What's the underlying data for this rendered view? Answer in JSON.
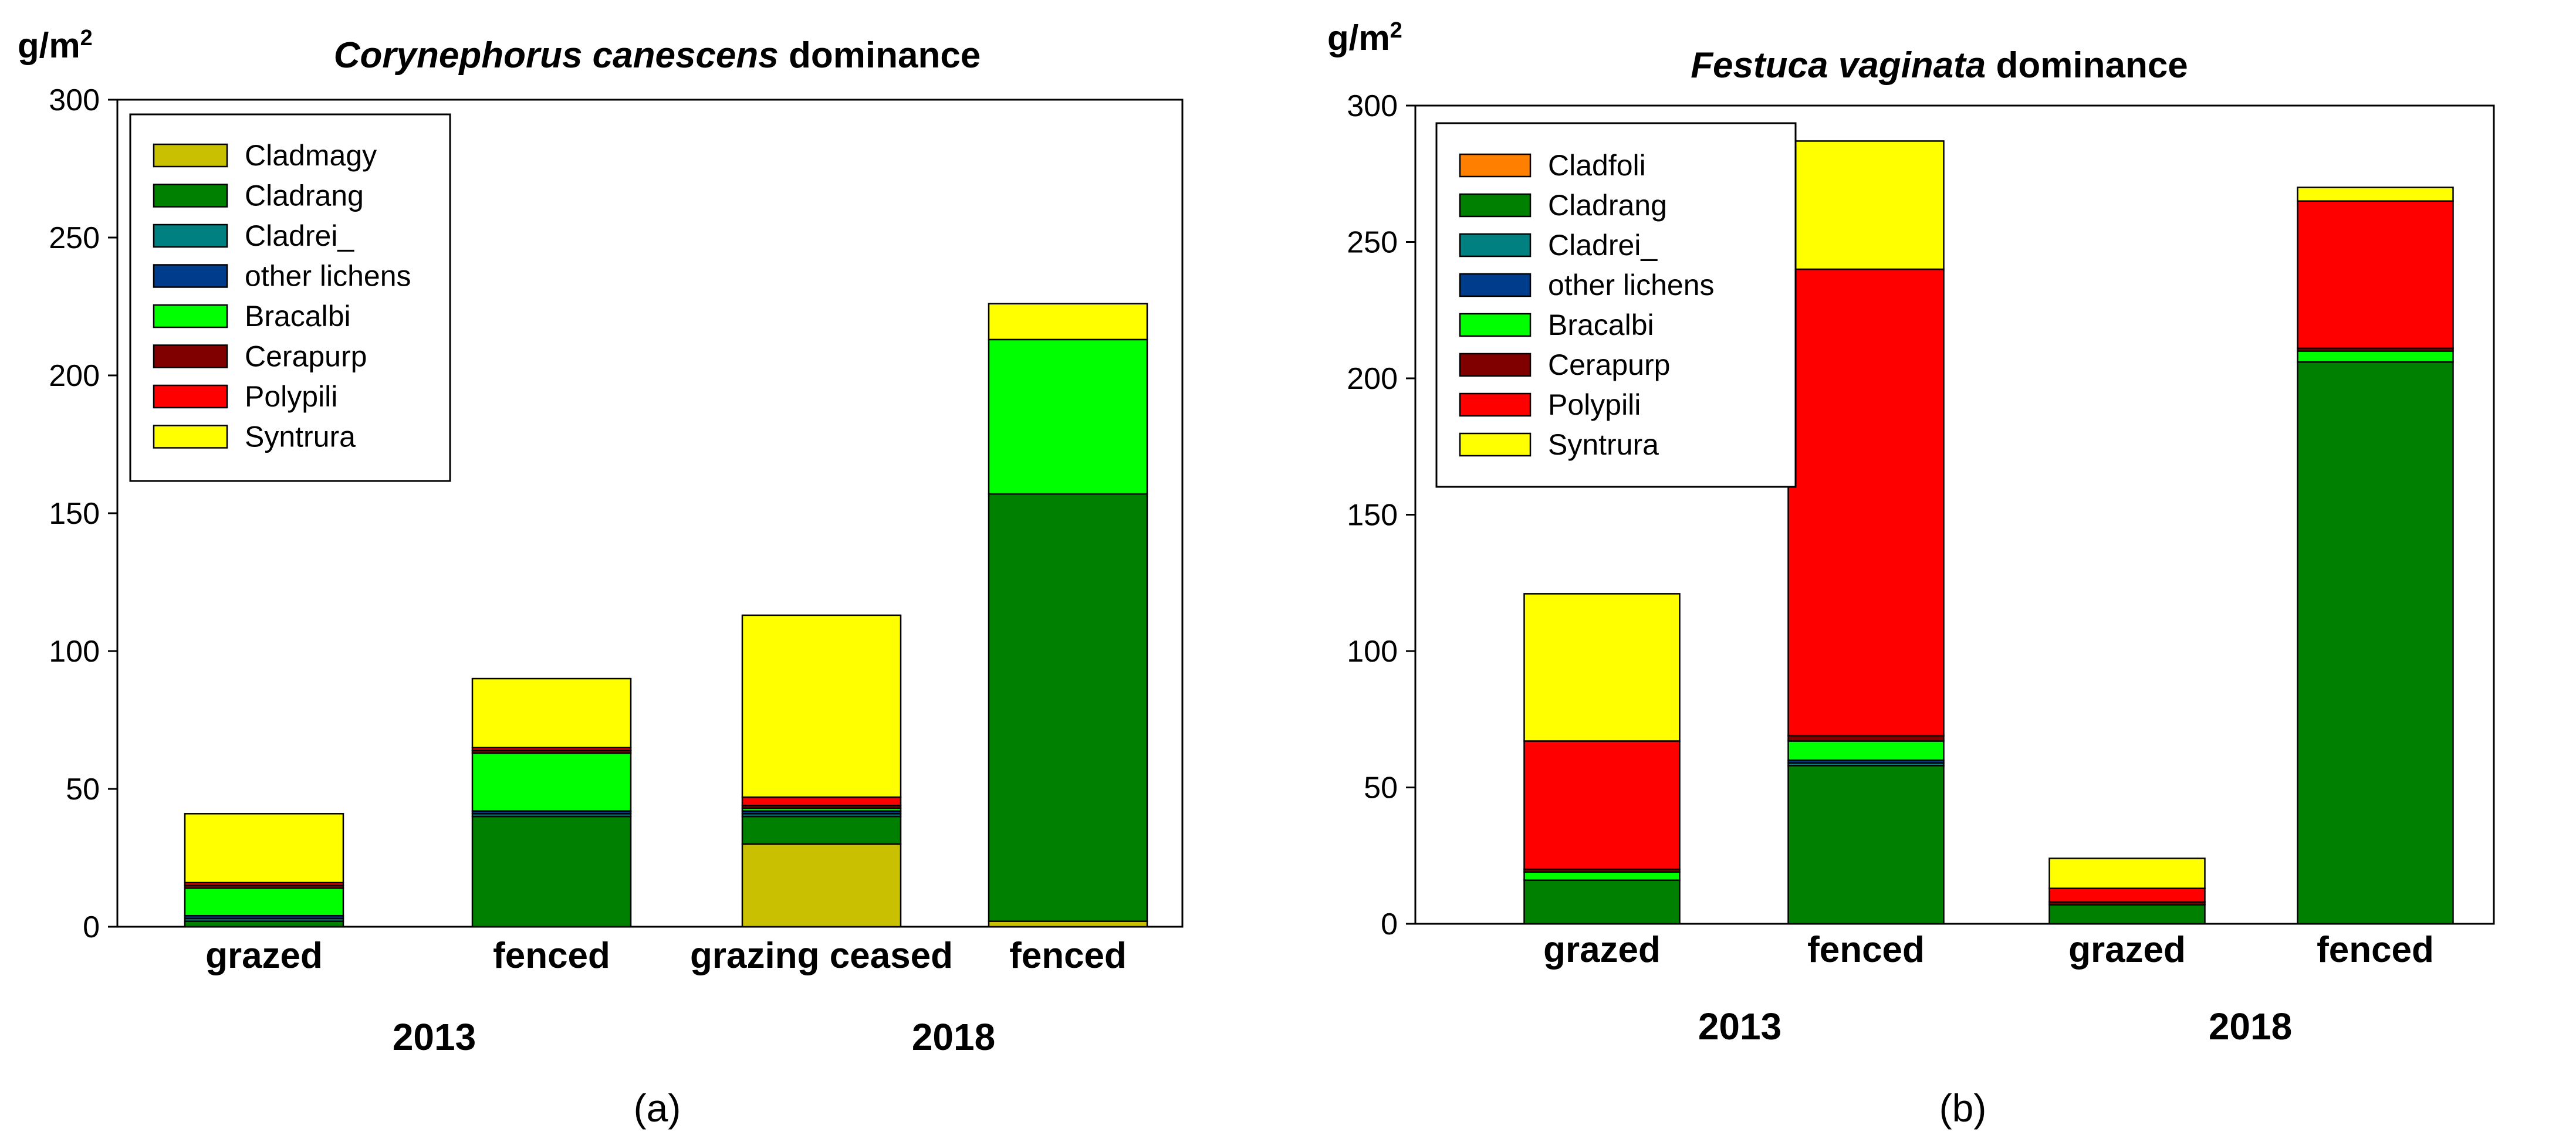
{
  "chart_data": [
    {
      "type": "bar",
      "stacked": true,
      "panel_label": "(a)",
      "title": {
        "italic": "Corynephorus canescens",
        "plain": " dominance"
      },
      "ylabel": "g/m",
      "ylabel_sup": "2",
      "ylim": [
        0,
        300
      ],
      "yticks": [
        0,
        50,
        100,
        150,
        200,
        250,
        300
      ],
      "categories": [
        "grazed",
        "fenced",
        "grazing ceased",
        "fenced"
      ],
      "groups": [
        {
          "label": "2013",
          "span": [
            0,
            1
          ]
        },
        {
          "label": "2018",
          "span": [
            2,
            3
          ]
        }
      ],
      "legend_position": "top-left",
      "series": [
        {
          "name": "Cladmagy",
          "color": "#c8c000",
          "values": [
            0,
            0,
            30,
            2
          ]
        },
        {
          "name": "Cladrang",
          "color": "#008000",
          "values": [
            2,
            40,
            10,
            155
          ]
        },
        {
          "name": "Cladrei_",
          "color": "#008080",
          "values": [
            1,
            1,
            1,
            0
          ]
        },
        {
          "name": "other lichens",
          "color": "#003c8c",
          "values": [
            1,
            1,
            1,
            0
          ]
        },
        {
          "name": "Bracalbi",
          "color": "#00ff00",
          "values": [
            10,
            21,
            1,
            56
          ]
        },
        {
          "name": "Cerapurp",
          "color": "#800000",
          "values": [
            1,
            1,
            1,
            0
          ]
        },
        {
          "name": "Polypili",
          "color": "#ff0000",
          "values": [
            1,
            1,
            3,
            0
          ]
        },
        {
          "name": "Syntrura",
          "color": "#ffff00",
          "values": [
            25,
            25,
            66,
            13
          ]
        }
      ]
    },
    {
      "type": "bar",
      "stacked": true,
      "panel_label": "(b)",
      "title": {
        "italic": "Festuca vaginata",
        "plain": " dominance"
      },
      "ylabel": "g/m",
      "ylabel_sup": "2",
      "ylim": [
        0,
        300
      ],
      "yticks": [
        0,
        50,
        100,
        150,
        200,
        250,
        300
      ],
      "categories": [
        "grazed",
        "fenced",
        "grazed",
        "fenced"
      ],
      "groups": [
        {
          "label": "2013",
          "span": [
            0,
            1
          ]
        },
        {
          "label": "2018",
          "span": [
            2,
            3
          ]
        }
      ],
      "legend_position": "top-left",
      "series": [
        {
          "name": "Cladfoli",
          "color": "#ff8000",
          "values": [
            0,
            0,
            0,
            0
          ]
        },
        {
          "name": "Cladrang",
          "color": "#008000",
          "values": [
            16,
            58,
            7,
            206
          ]
        },
        {
          "name": "Cladrei_",
          "color": "#008080",
          "values": [
            0,
            1,
            0,
            0
          ]
        },
        {
          "name": "other lichens",
          "color": "#003c8c",
          "values": [
            0,
            1,
            0,
            0
          ]
        },
        {
          "name": "Bracalbi",
          "color": "#00ff00",
          "values": [
            3,
            7,
            0,
            4
          ]
        },
        {
          "name": "Cerapurp",
          "color": "#800000",
          "values": [
            1,
            2,
            1,
            1
          ]
        },
        {
          "name": "Polypili",
          "color": "#ff0000",
          "values": [
            47,
            171,
            5,
            54
          ]
        },
        {
          "name": "Syntrura",
          "color": "#ffff00",
          "values": [
            54,
            47,
            11,
            5
          ]
        }
      ]
    }
  ]
}
